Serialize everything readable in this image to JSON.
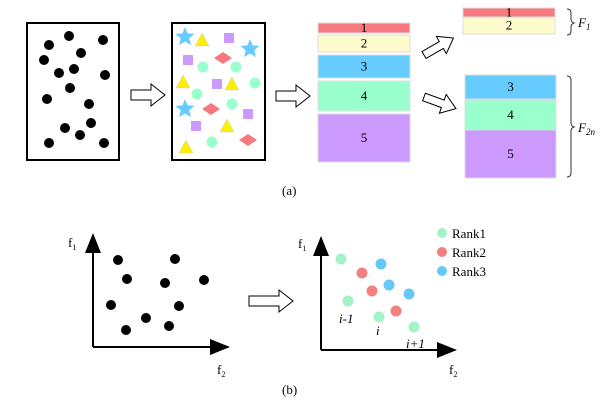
{
  "panel_a": {
    "caption": "(a)",
    "stack_labels": [
      "1",
      "2",
      "3",
      "4",
      "5"
    ],
    "f1_group": [
      "1",
      "2"
    ],
    "f2n_group": [
      "3",
      "4",
      "5"
    ],
    "f1_label": "F",
    "f1_sub": "1",
    "f2n_label": "F",
    "f2n_sub": "2n",
    "colors": {
      "1": "#f7787e",
      "2": "#fffbcc",
      "3": "#66ccff",
      "4": "#99ffcc",
      "5": "#cc99ff"
    }
  },
  "panel_b": {
    "caption": "(b)",
    "y_axis_label": "f",
    "y_axis_sub": "1",
    "x_axis_label": "f",
    "x_axis_sub": "2",
    "legend": [
      {
        "label": "Rank1",
        "color": "#a6f2c8"
      },
      {
        "label": "Rank2",
        "color": "#f28080"
      },
      {
        "label": "Rank3",
        "color": "#66c8f8"
      }
    ],
    "point_labels": {
      "prev": "i-1",
      "cur": "i",
      "next": "i+1"
    }
  }
}
